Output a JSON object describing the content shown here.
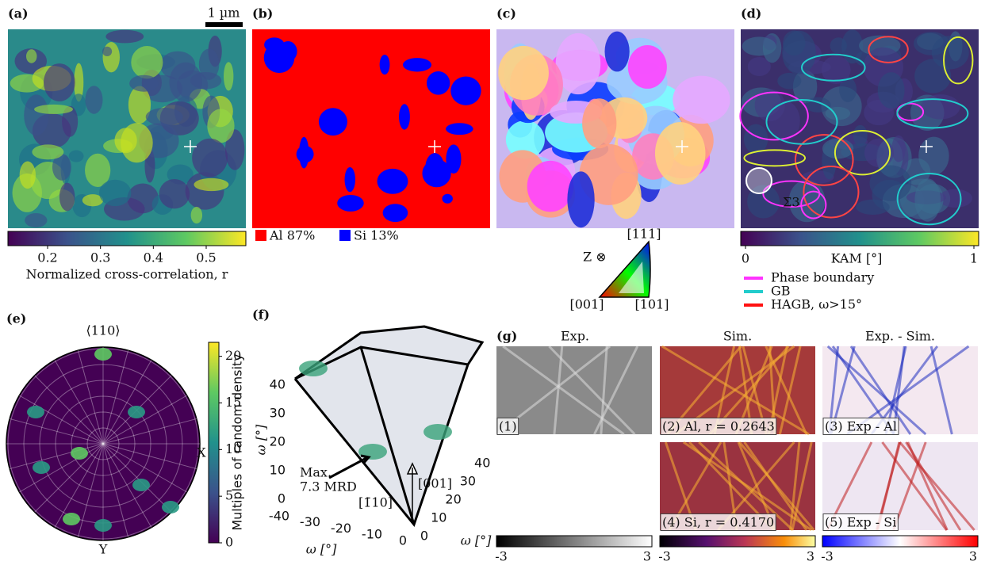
{
  "panels": {
    "a": {
      "label": "(a)",
      "scale_bar": "1 µm",
      "colorbar": {
        "ticks": [
          0.2,
          0.3,
          0.4,
          0.5
        ],
        "label": "Normalized cross-correlation, r"
      }
    },
    "b": {
      "label": "(b)",
      "legend": [
        "Al 87%",
        "Si 13%"
      ]
    },
    "c": {
      "label": "(c)",
      "key": {
        "direction": "Z ⊗",
        "corners": [
          "[111]",
          "[001]",
          "[101]"
        ]
      }
    },
    "d": {
      "label": "(d)",
      "annotation": "Σ3",
      "colorbar": {
        "ticks": [
          0,
          1
        ],
        "label": "KAM [°]"
      },
      "legend": [
        "Phase boundary",
        "GB",
        "HAGB, ω>15°"
      ]
    },
    "e": {
      "label": "(e)",
      "pole": "⟨110⟩",
      "axes": [
        "X",
        "Y"
      ],
      "colorbar": {
        "ticks": [
          0,
          5,
          10,
          15,
          20
        ],
        "label": "Multiples of random density"
      }
    },
    "f": {
      "label": "(f)",
      "zticks": [
        0,
        10,
        20,
        30,
        40
      ],
      "xticks": [
        -40,
        -30,
        -20,
        -10,
        0
      ],
      "yticks": [
        0,
        10,
        20,
        30,
        40
      ],
      "axis_label": "ω [°]",
      "annotation": [
        "Max.",
        "7.3 MRD"
      ],
      "directions": [
        "[001]",
        "[1̄10]"
      ]
    },
    "g": {
      "label": "(g)",
      "columns": [
        "Exp.",
        "Sim.",
        "Exp. - Sim."
      ],
      "patterns": [
        "(1)",
        "(2) Al, r = 0.2643",
        "(3) Exp - Al",
        "(4) Si, r = 0.4170",
        "(5) Exp - Si"
      ],
      "colorbars": [
        {
          "ticks": [
            -3,
            3
          ]
        },
        {
          "ticks": [
            -3,
            3
          ]
        },
        {
          "ticks": [
            -3,
            3
          ]
        }
      ]
    }
  }
}
